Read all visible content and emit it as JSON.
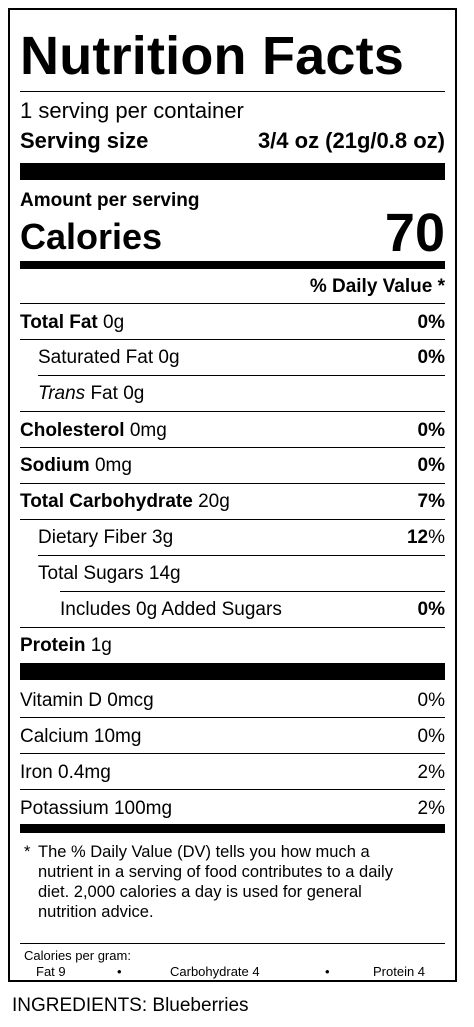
{
  "title": "Nutrition Facts",
  "servings_per_container": "1 serving per container",
  "serving_size_label": "Serving size",
  "serving_size_value": "3/4 oz (21g/0.8 oz)",
  "amount_per_serving": "Amount per serving",
  "calories_label": "Calories",
  "calories_value": "70",
  "daily_value_header": "% Daily Value *",
  "nutrients": [
    {
      "name": "Total Fat",
      "amount": "0g",
      "dv": "0%"
    },
    {
      "name": "Saturated Fat",
      "amount": "0g",
      "dv": "0%"
    },
    {
      "name_italic": "Trans",
      "name": "Fat",
      "amount": "0g",
      "dv": ""
    },
    {
      "name": "Cholesterol",
      "amount": "0mg",
      "dv": "0%"
    },
    {
      "name": "Sodium",
      "amount": "0mg",
      "dv": "0%"
    },
    {
      "name": "Total Carbohydrate",
      "amount": "20g",
      "dv": "7%"
    },
    {
      "name": "Dietary Fiber",
      "amount": "3g",
      "dv_bold": "12",
      "dv": "%"
    },
    {
      "name": "Total Sugars",
      "amount": "14g",
      "dv": ""
    },
    {
      "name": "Includes 0g Added Sugars",
      "amount": "",
      "dv": "0%"
    },
    {
      "name": "Protein",
      "amount": "1g",
      "dv": ""
    }
  ],
  "vitamins": [
    {
      "text": "Vitamin D 0mcg",
      "dv": "0%"
    },
    {
      "text": "Calcium 10mg",
      "dv": "0%"
    },
    {
      "text": "Iron 0.4mg",
      "dv": "2%"
    },
    {
      "text": "Potassium 100mg",
      "dv": "2%"
    }
  ],
  "footnote_star": "*",
  "footnote": "The % Daily Value (DV) tells you how much a nutrient in a serving of food contributes to a daily diet. 2,000 calories a day is used for general nutrition advice.",
  "calories_per_gram": {
    "label": "Calories per gram:",
    "fat": "Fat 9",
    "carbohydrate": "Carbohydrate 4",
    "protein": "Protein 4",
    "bullet": "•"
  },
  "ingredients": "INGREDIENTS: Blueberries"
}
